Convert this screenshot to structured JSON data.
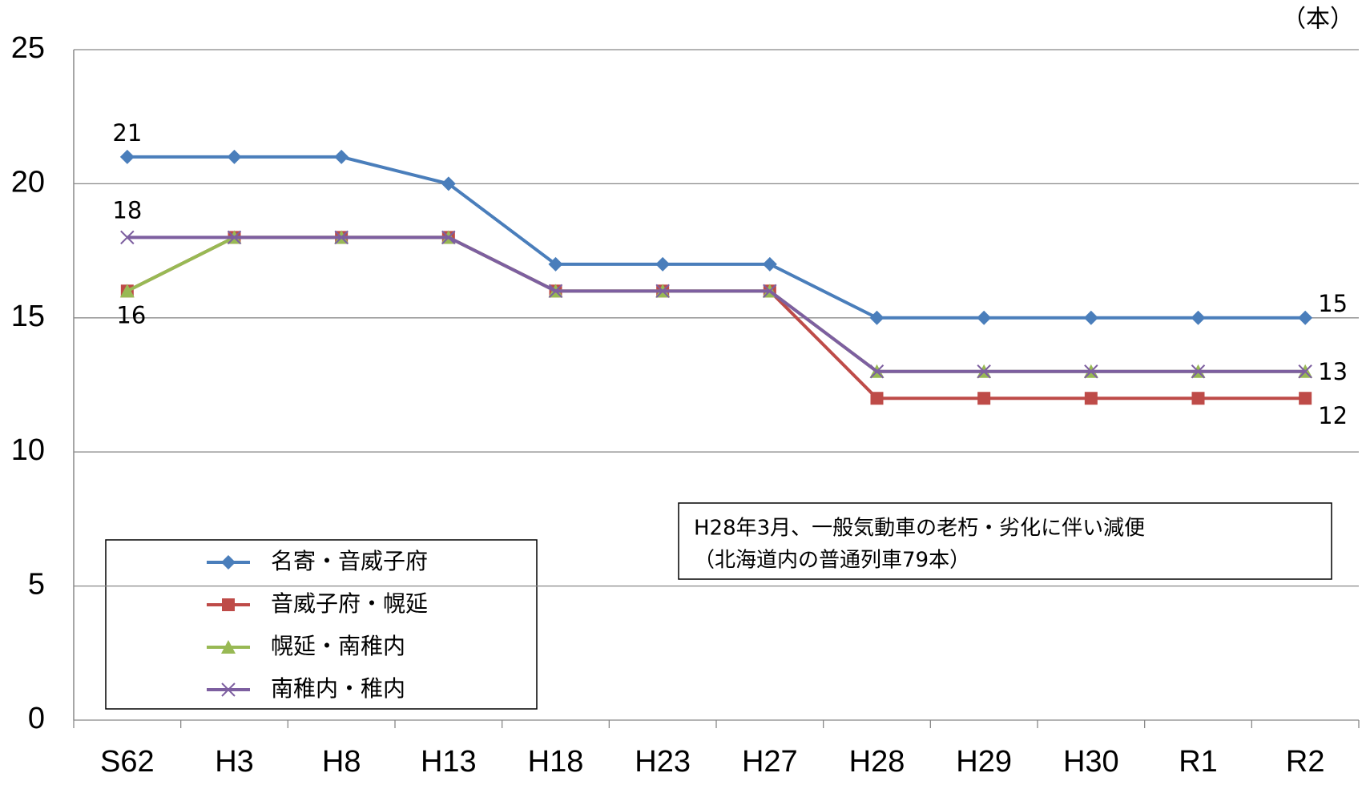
{
  "chart_data": {
    "type": "line",
    "unit_label": "（本）",
    "categories": [
      "S62",
      "H3",
      "H8",
      "H13",
      "H18",
      "H23",
      "H27",
      "H28",
      "H29",
      "H30",
      "R1",
      "R2"
    ],
    "series": [
      {
        "name": "名寄・音威子府",
        "color": "#4a7ebb",
        "marker": "diamond",
        "values": [
          21,
          21,
          21,
          20,
          17,
          17,
          17,
          15,
          15,
          15,
          15,
          15
        ]
      },
      {
        "name": "音威子府・幌延",
        "color": "#be4b48",
        "marker": "square",
        "values": [
          16,
          18,
          18,
          18,
          16,
          16,
          16,
          12,
          12,
          12,
          12,
          12
        ]
      },
      {
        "name": "幌延・南稚内",
        "color": "#98b954",
        "marker": "triangle",
        "values": [
          16,
          18,
          18,
          18,
          16,
          16,
          16,
          13,
          13,
          13,
          13,
          13
        ]
      },
      {
        "name": "南稚内・稚内",
        "color": "#7d5fa0",
        "marker": "x",
        "values": [
          18,
          18,
          18,
          18,
          16,
          16,
          16,
          13,
          13,
          13,
          13,
          13
        ]
      }
    ],
    "annotation": [
      "H28年3月、一般気動車の老朽・劣化に伴い減便",
      "（北海道内の普通列車79本）"
    ],
    "ylim": [
      0,
      25
    ],
    "yticks": [
      0,
      5,
      10,
      15,
      20,
      25
    ],
    "grid": true
  }
}
